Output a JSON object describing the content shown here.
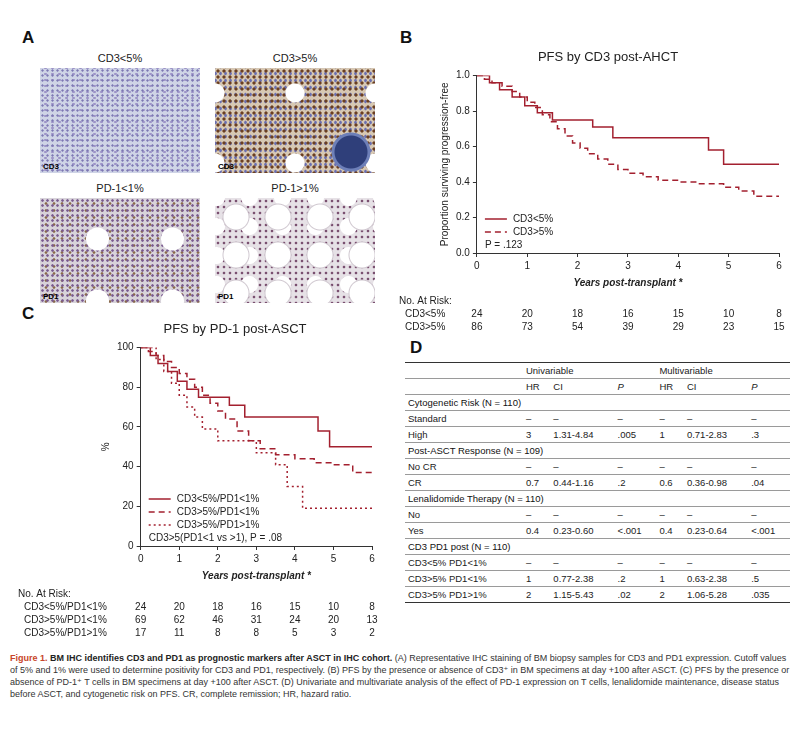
{
  "figure": {
    "panel_letters": [
      "A",
      "B",
      "C",
      "D"
    ],
    "images": [
      {
        "title": "CD3<5%",
        "stain": "CD3"
      },
      {
        "title": "CD3>5%",
        "stain": "CD3"
      },
      {
        "title": "PD-1<1%",
        "stain": "PD1"
      },
      {
        "title": "PD-1>1%",
        "stain": "PD1"
      }
    ],
    "table": {
      "group_headers": [
        "Univariable",
        "Multivariable"
      ],
      "columns": [
        "HR",
        "CI",
        "P",
        "HR",
        "CI",
        "P"
      ],
      "sections": [
        {
          "title": "Cytogenetic Risk (N = 110)",
          "rows": [
            [
              "Standard",
              "–",
              "–",
              "–",
              "–",
              "–",
              "–"
            ],
            [
              "High",
              "3",
              "1.31-4.84",
              ".005",
              "1",
              "0.71-2.83",
              ".3"
            ]
          ]
        },
        {
          "title": "Post-ASCT Response (N = 109)",
          "rows": [
            [
              "No CR",
              "–",
              "–",
              "–",
              "–",
              "–",
              "–"
            ],
            [
              "CR",
              "0.7",
              "0.44-1.16",
              ".2",
              "0.6",
              "0.36-0.98",
              ".04"
            ]
          ]
        },
        {
          "title": "Lenalidomide Therapy (N = 110)",
          "rows": [
            [
              "No",
              "–",
              "–",
              "–",
              "–",
              "–",
              "–"
            ],
            [
              "Yes",
              "0.4",
              "0.23-0.60",
              "<.001",
              "0.4",
              "0.23-0.64",
              "<.001"
            ]
          ]
        },
        {
          "title": "CD3 PD1 post (N = 110)",
          "rows": [
            [
              "CD3<5% PD1<1%",
              "–",
              "–",
              "–",
              "–",
              "–",
              "–"
            ],
            [
              "CD3>5% PD1<1%",
              "1",
              "0.77-2.38",
              ".2",
              "1",
              "0.63-2.38",
              ".5"
            ],
            [
              "CD3>5% PD1>1%",
              "2",
              "1.15-5.43",
              ".02",
              "2",
              "1.06-5.28",
              ".035"
            ]
          ]
        }
      ]
    },
    "caption": {
      "label": "Figure 1.",
      "title": "BM IHC identifies CD3 and PD1 as prognostic markers after ASCT in IHC cohort.",
      "text": "(A) Representative IHC staining of BM biopsy samples for CD3 and PD1 expression. Cutoff values of 5% and 1% were used to determine positivity for CD3 and PD1, respectively. (B) PFS by the presence or absence of CD3⁺ in BM specimens at day +100 after ASCT. (C) PFS by the presence or absence of PD-1⁺ T cells in BM specimens at day +100 after ASCT. (D) Univariate and multivariate analysis of the effect of PD-1 expression on T cells, lenalidomide maintenance, disease status before ASCT, and cytogenetic risk on PFS. CR, complete remission; HR, hazard ratio."
    }
  },
  "chart_data": [
    {
      "type": "step",
      "title": "PFS by CD3 post-AHCT",
      "x_label": "Years post-transplant *",
      "y_label": "Proportion surviving progression-free",
      "xlim": [
        0,
        6
      ],
      "xticks": [
        0,
        1,
        2,
        3,
        4,
        5,
        6
      ],
      "ylim": [
        0,
        1
      ],
      "yticks": [
        {
          "value": 0,
          "label": "0.0"
        },
        {
          "value": 0.2,
          "label": "0.2"
        },
        {
          "value": 0.4,
          "label": "0.4"
        },
        {
          "value": 0.6,
          "label": "0.6"
        },
        {
          "value": 0.8,
          "label": "0.8"
        },
        {
          "value": 1,
          "label": "1.0"
        }
      ],
      "grid": false,
      "legend": "lower left",
      "annotation": "P = .123",
      "series": [
        {
          "name": "CD3<5%",
          "color": "#a3202f",
          "line_style": "solid",
          "x": [
            0,
            0.25,
            0.45,
            0.7,
            0.95,
            1.2,
            1.5,
            2.3,
            2.7,
            4.6,
            4.9,
            6
          ],
          "values": [
            1,
            0.96,
            0.92,
            0.88,
            0.83,
            0.79,
            0.75,
            0.71,
            0.65,
            0.58,
            0.5,
            0.5
          ]
        },
        {
          "name": "CD3>5%",
          "color": "#a3202f",
          "line_style": "dashed",
          "x": [
            0,
            0.15,
            0.3,
            0.5,
            0.7,
            0.85,
            1.0,
            1.15,
            1.3,
            1.45,
            1.6,
            1.75,
            1.9,
            2.05,
            2.2,
            2.4,
            2.6,
            2.8,
            3.0,
            3.3,
            3.6,
            4.0,
            4.4,
            4.9,
            5.2,
            5.5,
            6.0
          ],
          "values": [
            1,
            0.98,
            0.96,
            0.94,
            0.91,
            0.88,
            0.85,
            0.82,
            0.78,
            0.74,
            0.7,
            0.66,
            0.62,
            0.59,
            0.56,
            0.53,
            0.5,
            0.47,
            0.45,
            0.43,
            0.41,
            0.4,
            0.39,
            0.37,
            0.35,
            0.32,
            0.32
          ]
        }
      ],
      "at_risk": {
        "title": "No. At Risk:",
        "rows": [
          {
            "name": "CD3<5%",
            "values": [
              24,
              20,
              18,
              16,
              15,
              10,
              8
            ]
          },
          {
            "name": "CD3>5%",
            "values": [
              86,
              73,
              54,
              39,
              29,
              23,
              15
            ]
          }
        ]
      }
    },
    {
      "type": "step",
      "title": "PFS by PD-1 post-ASCT",
      "x_label": "Years post-transplant *",
      "y_label": "%",
      "xlim": [
        0,
        6
      ],
      "xticks": [
        0,
        1,
        2,
        3,
        4,
        5,
        6
      ],
      "ylim": [
        0,
        100
      ],
      "yticks": [
        0,
        20,
        40,
        60,
        80,
        100
      ],
      "grid": false,
      "legend": "lower left",
      "annotation": "CD3>5(PD1<1 vs >1), P = .08",
      "series": [
        {
          "name": "CD3<5%/PD1<1%",
          "color": "#a3202f",
          "line_style": "solid",
          "x": [
            0,
            0.25,
            0.45,
            0.7,
            0.95,
            1.2,
            1.5,
            2.3,
            2.7,
            4.6,
            4.9,
            6
          ],
          "values": [
            100,
            96,
            92,
            88,
            83,
            79,
            75,
            71,
            65,
            58,
            50,
            50
          ]
        },
        {
          "name": "CD3>5%/PD1<1%",
          "color": "#a3202f",
          "line_style": "dashed",
          "x": [
            0,
            0.2,
            0.4,
            0.6,
            0.8,
            1.0,
            1.2,
            1.4,
            1.6,
            1.8,
            2.0,
            2.2,
            2.5,
            2.8,
            3.1,
            3.5,
            4.0,
            4.5,
            5.0,
            5.5,
            6
          ],
          "values": [
            100,
            98,
            96,
            93,
            90,
            87,
            84,
            80,
            76,
            72,
            68,
            64,
            58,
            53,
            49,
            46,
            44,
            42,
            41,
            37,
            37
          ]
        },
        {
          "name": "CD3>5%/PD1>1%",
          "color": "#a3202f",
          "line_style": "dotted",
          "x": [
            0,
            0.4,
            0.6,
            0.8,
            1.0,
            1.2,
            1.4,
            1.6,
            2.0,
            2.8,
            3.0,
            3.5,
            3.8,
            4.2,
            6
          ],
          "values": [
            100,
            94,
            88,
            82,
            76,
            70,
            65,
            59,
            53,
            53,
            47,
            41,
            30,
            19,
            19
          ]
        }
      ],
      "at_risk": {
        "title": "No. At Risk:",
        "rows": [
          {
            "name": "CD3<5%/PD1<1%",
            "values": [
              24,
              20,
              18,
              16,
              15,
              10,
              8
            ]
          },
          {
            "name": "CD3>5%/PD1<1%",
            "values": [
              69,
              62,
              46,
              31,
              24,
              20,
              13
            ]
          },
          {
            "name": "CD3>5%/PD1>1%",
            "values": [
              17,
              11,
              8,
              8,
              5,
              3,
              2
            ]
          }
        ]
      }
    }
  ]
}
